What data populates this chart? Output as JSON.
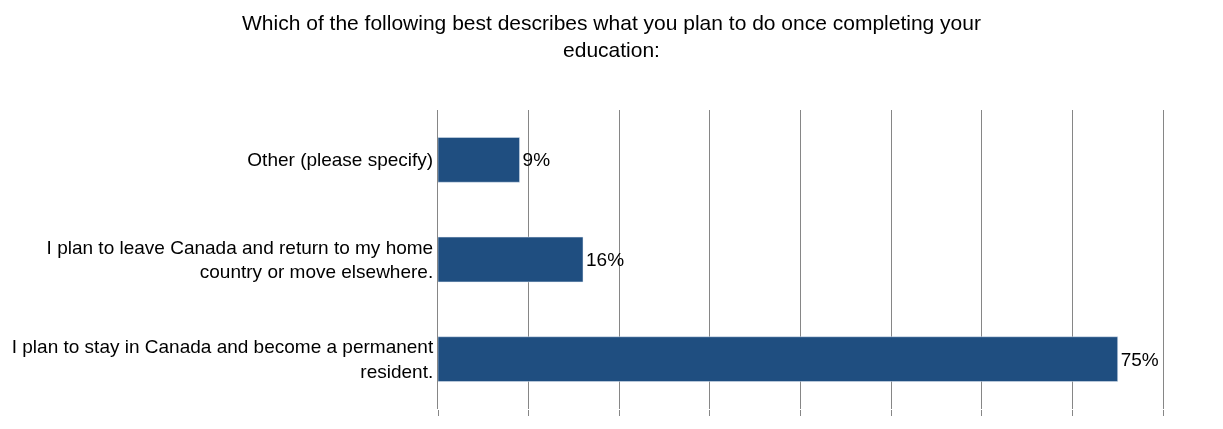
{
  "chart_data": {
    "type": "bar",
    "orientation": "horizontal",
    "title": "Which of the following best describes what you plan to do once completing your education:",
    "categories": [
      "Other (please specify)",
      "I plan to leave Canada and return to my home country or move elsewhere.",
      "I plan to stay in Canada and become a permanent resident."
    ],
    "values": [
      9,
      16,
      75
    ],
    "color": "#1f4e80",
    "data_labels": true,
    "value_labels": [
      "9%",
      "16%",
      "75%"
    ],
    "xlim": [
      0,
      80
    ],
    "xticks": [
      {
        "value": 0,
        "label": null
      },
      {
        "value": 10,
        "label": null
      },
      {
        "value": 20,
        "label": null
      },
      {
        "value": 30,
        "label": null
      },
      {
        "value": 40,
        "label": null
      },
      {
        "value": 50,
        "label": null
      },
      {
        "value": 60,
        "label": null
      },
      {
        "value": 70,
        "label": null
      },
      {
        "value": 80,
        "label": null
      }
    ],
    "grid": "x",
    "tick_labels": "y"
  }
}
